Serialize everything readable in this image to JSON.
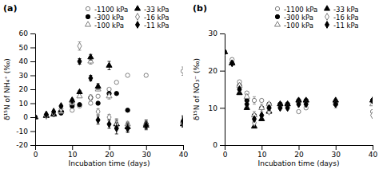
{
  "chart_data": [
    {
      "type": "scatter",
      "title": "(a)",
      "x_label": "Incubation time (days)",
      "y_label": "δ¹⁵N of NH₄⁺ (‰)",
      "xlim": [
        0,
        40
      ],
      "xticks": [
        0,
        10,
        20,
        30,
        40
      ],
      "ylim": [
        -20,
        60
      ],
      "yticks": [
        -20,
        -10,
        0,
        10,
        20,
        30,
        40,
        50,
        60
      ],
      "legend": "upper right",
      "series": [
        {
          "name": "-1100 kPa",
          "color": "#808080",
          "marker": "circle-open",
          "x": [
            0,
            3,
            5,
            7,
            10,
            12,
            15,
            17,
            20,
            22,
            25,
            30,
            40
          ],
          "values": [
            0,
            1,
            2,
            3,
            5,
            8,
            10,
            15,
            20,
            25,
            30,
            30,
            33
          ],
          "errors": [
            0.5,
            0.5,
            0.5,
            0.5,
            0.5,
            0.5,
            0.5,
            0.5,
            0.5,
            0.5,
            0.5,
            0.5,
            3
          ]
        },
        {
          "name": "-300 kPa",
          "color": "#000000",
          "marker": "circle",
          "x": [
            0,
            3,
            5,
            7,
            10,
            12,
            15,
            17,
            20,
            22,
            25,
            30,
            40
          ],
          "values": [
            0,
            1,
            2,
            3,
            8,
            9,
            14,
            10,
            17,
            17,
            5,
            -5,
            -3
          ],
          "errors": [
            0.5,
            0.5,
            0.5,
            0.5,
            0.5,
            0.5,
            0.5,
            0.5,
            0.5,
            0.5,
            1,
            3,
            3
          ]
        },
        {
          "name": "-100 kPa",
          "color": "#808080",
          "marker": "triangle-open",
          "x": [
            0,
            3,
            5,
            7,
            10,
            12,
            15,
            17,
            20,
            22,
            25,
            30,
            40
          ],
          "values": [
            0,
            1,
            2,
            4,
            10,
            15,
            40,
            20,
            15,
            -5,
            -5,
            -5,
            -3
          ],
          "errors": [
            0.5,
            0.5,
            0.5,
            0.5,
            0.5,
            0.5,
            2,
            1,
            2,
            2,
            2,
            1,
            2
          ]
        },
        {
          "name": "-33 kPa",
          "color": "#000000",
          "marker": "triangle",
          "x": [
            0,
            3,
            5,
            7,
            10,
            12,
            15,
            17,
            20,
            22,
            25,
            30,
            40
          ],
          "values": [
            0,
            1,
            2,
            5,
            12,
            18,
            43,
            22,
            37,
            -5,
            -7,
            -6,
            -5
          ],
          "errors": [
            0.5,
            0.5,
            0.5,
            0.5,
            0.5,
            1,
            2,
            2,
            3,
            3,
            3,
            2,
            2
          ]
        },
        {
          "name": "-16 kPa",
          "color": "#808080",
          "marker": "diamond-open",
          "x": [
            0,
            3,
            5,
            7,
            10,
            12,
            15,
            17,
            20,
            22,
            25,
            30,
            40
          ],
          "values": [
            0,
            1,
            3,
            6,
            11,
            51,
            14,
            4,
            0,
            -5,
            -7,
            -6,
            -4
          ],
          "errors": [
            0.5,
            0.5,
            0.5,
            0.5,
            1,
            3,
            2,
            2,
            2,
            4,
            3,
            2,
            3
          ]
        },
        {
          "name": "-11 kPa",
          "color": "#000000",
          "marker": "diamond",
          "x": [
            0,
            3,
            5,
            7,
            10,
            12,
            15,
            17,
            20,
            22,
            25,
            30,
            40
          ],
          "values": [
            0,
            2,
            4,
            8,
            12,
            40,
            28,
            -2,
            -5,
            -8,
            -8,
            -6,
            -3
          ],
          "errors": [
            0.5,
            0.5,
            0.5,
            0.5,
            1,
            2,
            2,
            3,
            3,
            4,
            3,
            3,
            4
          ]
        }
      ]
    },
    {
      "type": "scatter",
      "title": "(b)",
      "x_label": "Incubation time (days)",
      "y_label": "δ¹⁵N of NO₃⁻ (‰)",
      "xlim": [
        0,
        40
      ],
      "xticks": [
        0,
        10,
        20,
        30,
        40
      ],
      "ylim": [
        0,
        30
      ],
      "yticks": [
        0,
        10,
        20,
        30
      ],
      "legend": "upper right",
      "series": [
        {
          "name": "-1100 kPa",
          "color": "#808080",
          "marker": "circle-open",
          "x": [
            0,
            2,
            4,
            6,
            8,
            10,
            12,
            15,
            17,
            20,
            22,
            30,
            40
          ],
          "values": [
            25,
            23,
            17,
            14,
            12,
            12,
            10,
            11,
            11,
            9,
            10,
            11,
            9
          ],
          "errors": [
            0.3,
            0.3,
            0.3,
            0.3,
            1,
            0.3,
            0.3,
            0.3,
            0.3,
            0.3,
            0.3,
            1,
            0.3
          ]
        },
        {
          "name": "-300 kPa",
          "color": "#000000",
          "marker": "circle",
          "x": [
            0,
            2,
            4,
            6,
            8,
            10,
            12,
            15,
            17,
            20,
            22,
            30,
            40
          ],
          "values": [
            25,
            22,
            16,
            12,
            8,
            10,
            11,
            11,
            11,
            12,
            12,
            11,
            12
          ],
          "errors": [
            0.3,
            0.3,
            0.3,
            0.3,
            0.3,
            0.3,
            0.3,
            0.3,
            0.3,
            0.3,
            0.3,
            0.3,
            0.3
          ]
        },
        {
          "name": "-100 kPa",
          "color": "#808080",
          "marker": "triangle-open",
          "x": [
            0,
            2,
            4,
            6,
            8,
            10,
            12,
            15,
            17,
            20,
            22,
            30,
            40
          ],
          "values": [
            25,
            22,
            16,
            13,
            8,
            10,
            11,
            11,
            11,
            12,
            12,
            12,
            11
          ],
          "errors": [
            0.3,
            0.3,
            0.3,
            0.3,
            1,
            1,
            0.3,
            0.3,
            0.3,
            0.3,
            0.3,
            0.3,
            0.3
          ]
        },
        {
          "name": "-33 kPa",
          "color": "#000000",
          "marker": "triangle",
          "x": [
            0,
            2,
            4,
            6,
            8,
            10,
            12,
            15,
            17,
            20,
            22,
            30,
            40
          ],
          "values": [
            25,
            22,
            14,
            10,
            5,
            7,
            9,
            11,
            11,
            12,
            12,
            12,
            12
          ],
          "errors": [
            0.3,
            0.3,
            0.3,
            0.3,
            0.3,
            0.3,
            0.3,
            0.3,
            0.3,
            0.3,
            0.3,
            0.3,
            0.3
          ]
        },
        {
          "name": "-16 kPa",
          "color": "#808080",
          "marker": "diamond-open",
          "x": [
            0,
            2,
            4,
            6,
            8,
            10,
            12,
            15,
            17,
            20,
            22,
            30,
            40
          ],
          "values": [
            25,
            22,
            15,
            11,
            6,
            8,
            9,
            10,
            10,
            11,
            11,
            11,
            8
          ],
          "errors": [
            0.3,
            0.3,
            0.3,
            0.3,
            0.3,
            0.3,
            0.3,
            0.3,
            0.3,
            0.3,
            0.3,
            0.3,
            0.3
          ]
        },
        {
          "name": "-11 kPa",
          "color": "#000000",
          "marker": "diamond",
          "x": [
            0,
            2,
            4,
            6,
            8,
            10,
            12,
            15,
            17,
            20,
            22,
            30,
            40
          ],
          "values": [
            25,
            22,
            15,
            11,
            7,
            8,
            10,
            10,
            10,
            11,
            11,
            11,
            12
          ],
          "errors": [
            0.3,
            0.3,
            0.3,
            0.3,
            0.3,
            0.3,
            0.3,
            0.3,
            0.3,
            0.3,
            0.3,
            0.3,
            0.3
          ]
        }
      ]
    }
  ]
}
